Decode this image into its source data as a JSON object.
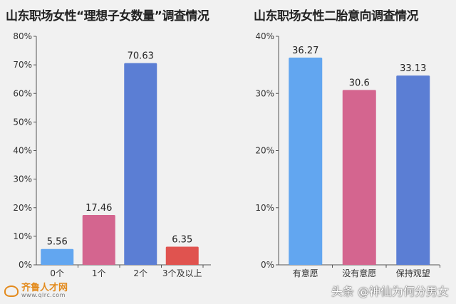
{
  "chart_data": [
    {
      "type": "bar",
      "title": "山东职场女性“理想子女数量”调查情况",
      "categories": [
        "0个",
        "1个",
        "2个",
        "3个及以上"
      ],
      "values": [
        5.56,
        17.46,
        70.63,
        6.35
      ],
      "value_labels": [
        "5.56",
        "17.46",
        "70.63",
        "6.35"
      ],
      "ylim": [
        0,
        80
      ],
      "yticks": [
        "0%",
        "10%",
        "20%",
        "30%",
        "40%",
        "50%",
        "60%",
        "70%",
        "80%"
      ],
      "grid": false,
      "colors": [
        "#62a6f0",
        "#d4658f",
        "#5b7ed4",
        "#e0534f"
      ]
    },
    {
      "type": "bar",
      "title": "山东职场女性二胎意向调查情况",
      "categories": [
        "有意愿",
        "没有意愿",
        "保持观望"
      ],
      "values": [
        36.27,
        30.6,
        33.13
      ],
      "value_labels": [
        "36.27",
        "30.6",
        "33.13"
      ],
      "ylim": [
        0,
        40
      ],
      "yticks": [
        "0%",
        "10%",
        "20%",
        "30%",
        "40%"
      ],
      "grid": false,
      "colors": [
        "#62a6f0",
        "#d4658f",
        "#5b7ed4"
      ]
    }
  ],
  "watermark": {
    "logo_name": "齐鲁人才网",
    "logo_url": "www.qlrc.com",
    "source": "头条 @神仙为何分男女"
  }
}
